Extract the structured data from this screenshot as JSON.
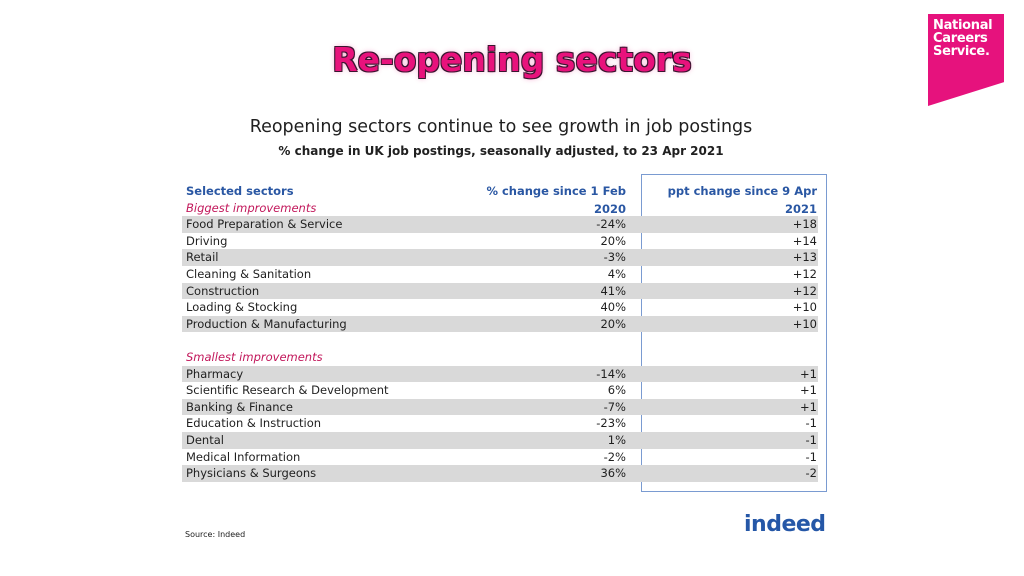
{
  "slide": {
    "title": "Re-opening sectors"
  },
  "logos": {
    "ncs_lines": [
      "National",
      "Careers",
      "Service."
    ],
    "indeed": "indeed"
  },
  "chart": {
    "title": "Reopening sectors continue to see growth in job postings",
    "subtitle": "% change in UK job postings, seasonally adjusted, to 23 Apr 2021"
  },
  "table": {
    "headers": {
      "sector": "Selected sectors",
      "pct": "% change since 1 Feb 2020",
      "ppt": "ppt change since 9 Apr 2021"
    },
    "groups": [
      {
        "label": "Biggest improvements",
        "rows": [
          {
            "sector": "Food Preparation & Service",
            "pct": "-24%",
            "ppt": "+18"
          },
          {
            "sector": "Driving",
            "pct": "20%",
            "ppt": "+14"
          },
          {
            "sector": "Retail",
            "pct": "-3%",
            "ppt": "+13"
          },
          {
            "sector": "Cleaning & Sanitation",
            "pct": "4%",
            "ppt": "+12"
          },
          {
            "sector": "Construction",
            "pct": "41%",
            "ppt": "+12"
          },
          {
            "sector": "Loading & Stocking",
            "pct": "40%",
            "ppt": "+10"
          },
          {
            "sector": "Production & Manufacturing",
            "pct": "20%",
            "ppt": "+10"
          }
        ]
      },
      {
        "label": "Smallest improvements",
        "rows": [
          {
            "sector": "Pharmacy",
            "pct": "-14%",
            "ppt": "+1"
          },
          {
            "sector": "Scientific Research & Development",
            "pct": "6%",
            "ppt": "+1"
          },
          {
            "sector": "Banking & Finance",
            "pct": "-7%",
            "ppt": "+1"
          },
          {
            "sector": "Education & Instruction",
            "pct": "-23%",
            "ppt": "-1"
          },
          {
            "sector": "Dental",
            "pct": "1%",
            "ppt": "-1"
          },
          {
            "sector": "Medical Information",
            "pct": "-2%",
            "ppt": "-1"
          },
          {
            "sector": "Physicians & Surgeons",
            "pct": "36%",
            "ppt": "-2"
          }
        ]
      }
    ]
  },
  "footer": {
    "source": "Source: Indeed"
  }
}
